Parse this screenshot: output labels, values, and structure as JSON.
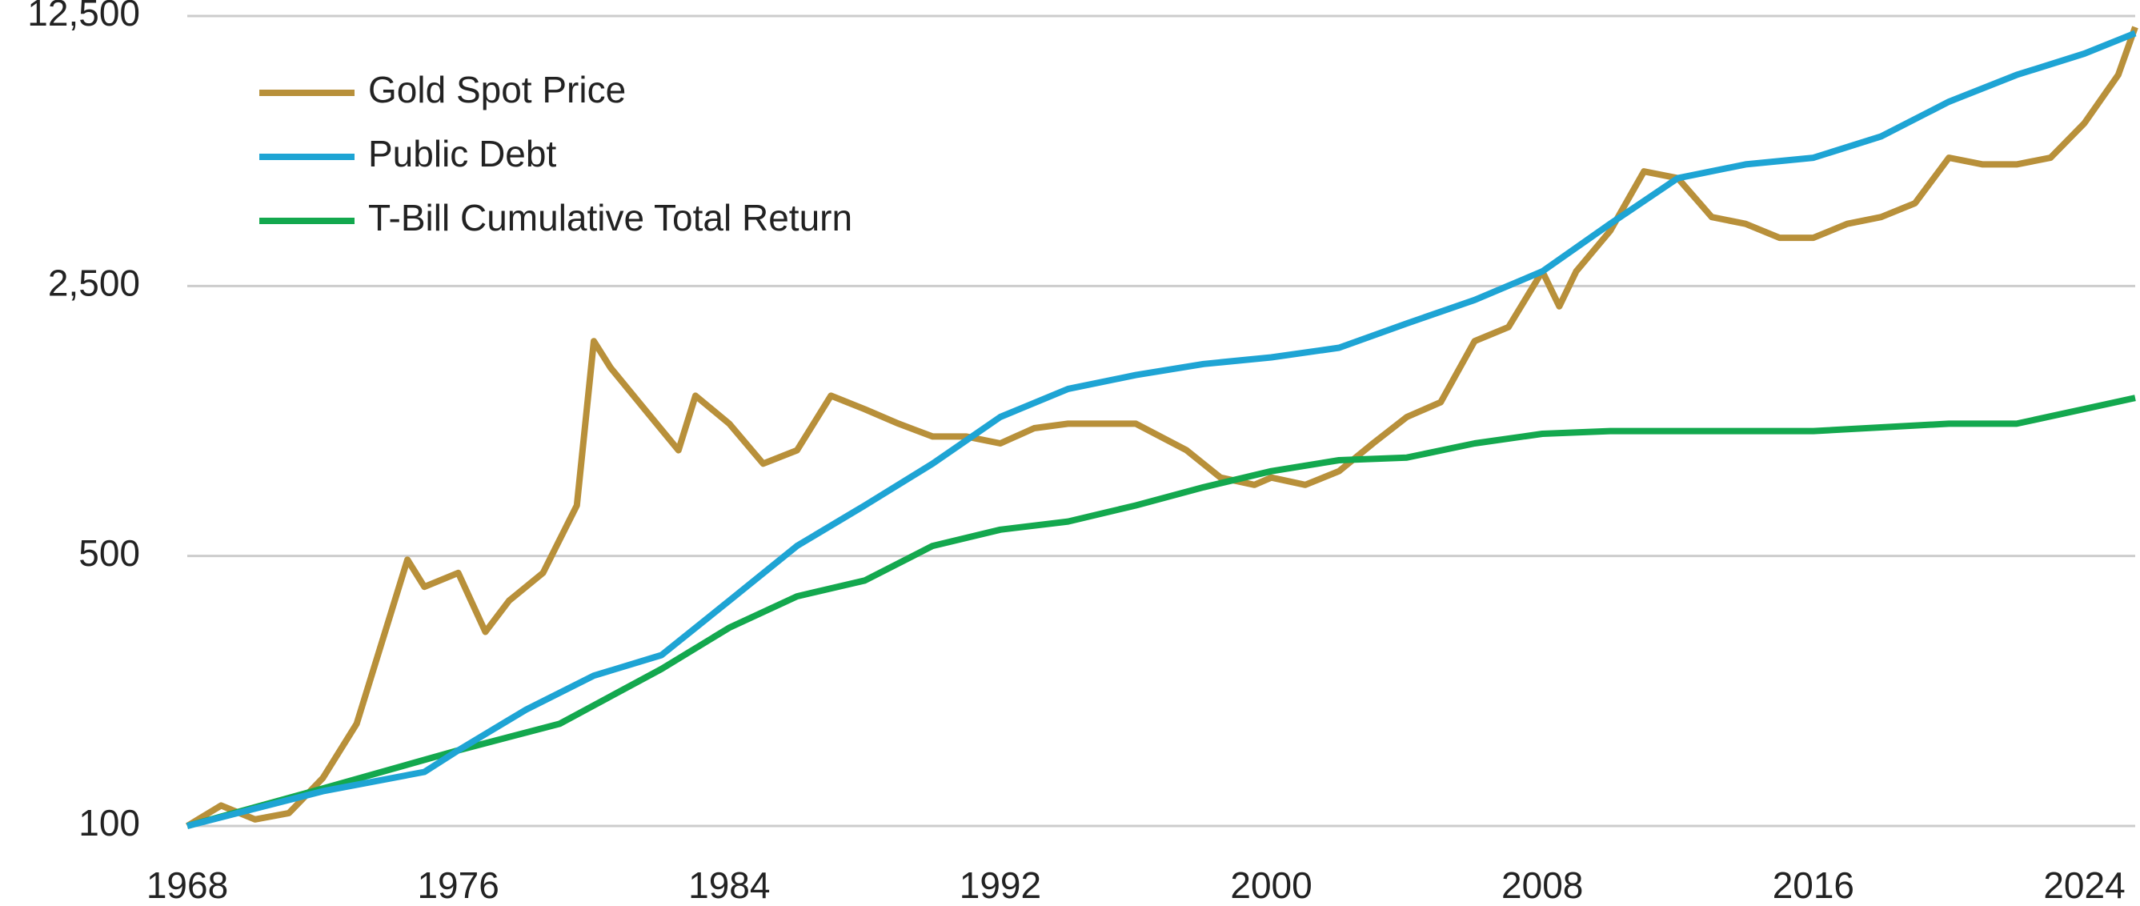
{
  "chart_data": {
    "type": "line",
    "xlim": [
      1968,
      2025.5
    ],
    "xticks": [
      1968,
      1976,
      1984,
      1992,
      2000,
      2008,
      2016,
      2024
    ],
    "ylim": [
      100,
      12500
    ],
    "yticks": [
      100,
      500,
      {
        "value": 2500,
        "label": "2,500"
      },
      {
        "value": 12500,
        "label": "12,500"
      }
    ],
    "log_y": true,
    "grid": true,
    "legend": "upper left",
    "series": [
      {
        "name": "Gold Spot Price",
        "color": "#b8903a",
        "x": [
          1968,
          1969,
          1970,
          1971,
          1972,
          1973,
          1974.5,
          1975,
          1976,
          1976.8,
          1977.5,
          1978.5,
          1979.5,
          1980,
          1980.5,
          1981.5,
          1982.5,
          1983,
          1984,
          1985,
          1986,
          1987,
          1988,
          1989,
          1990,
          1991,
          1992,
          1993,
          1994,
          1996,
          1997.5,
          1998.5,
          1999.5,
          2000,
          2001,
          2002,
          2003,
          2004,
          2005,
          2006,
          2007,
          2008,
          2008.5,
          2009,
          2010,
          2011,
          2012,
          2013,
          2014,
          2015,
          2016,
          2017,
          2018,
          2019,
          2020,
          2021,
          2022,
          2023,
          2024,
          2025,
          2025.5
        ],
        "values": [
          100,
          113,
          104,
          108,
          133,
          184,
          489,
          416,
          452,
          318,
          383,
          452,
          676,
          1800,
          1534,
          1199,
          939,
          1300,
          1100,
          867,
          939,
          1300,
          1199,
          1100,
          1019,
          1019,
          978,
          1071,
          1100,
          1100,
          939,
          798,
          764,
          798,
          764,
          829,
          978,
          1145,
          1250,
          1800,
          1957,
          2727,
          2214,
          2727,
          3471,
          4950,
          4755,
          3770,
          3620,
          3333,
          3333,
          3620,
          3770,
          4096,
          5370,
          5160,
          5160,
          5370,
          6600,
          8800,
          11700
        ]
      },
      {
        "name": "Public Debt",
        "color": "#1ea4d4",
        "x": [
          1968,
          1972,
          1975,
          1976,
          1978,
          1980,
          1982,
          1984,
          1986,
          1988,
          1990,
          1992,
          1994,
          1996,
          1998,
          2000,
          2002,
          2004,
          2006,
          2008,
          2010,
          2012,
          2014,
          2016,
          2018,
          2020,
          2022,
          2024,
          2025.5
        ],
        "values": [
          100,
          123,
          138,
          157,
          200,
          245,
          277,
          383,
          531,
          676,
          867,
          1145,
          1354,
          1470,
          1570,
          1634,
          1730,
          2000,
          2300,
          2727,
          3620,
          4755,
          5160,
          5370,
          6100,
          7500,
          8800,
          9990,
          11280
        ]
      },
      {
        "name": "T-Bill Cumulative Total Return",
        "color": "#13a84e",
        "x": [
          1968,
          1972,
          1976,
          1979,
          1982,
          1984,
          1986,
          1988,
          1990,
          1992,
          1994,
          1996,
          1998,
          2000,
          2002,
          2004,
          2006,
          2008,
          2010,
          2016,
          2020,
          2022,
          2025.5
        ],
        "values": [
          100,
          125,
          157,
          184,
          255,
          326,
          393,
          432,
          531,
          585,
          614,
          676,
          753,
          829,
          885,
          899,
          978,
          1036,
          1053,
          1053,
          1100,
          1100,
          1283
        ]
      }
    ]
  }
}
